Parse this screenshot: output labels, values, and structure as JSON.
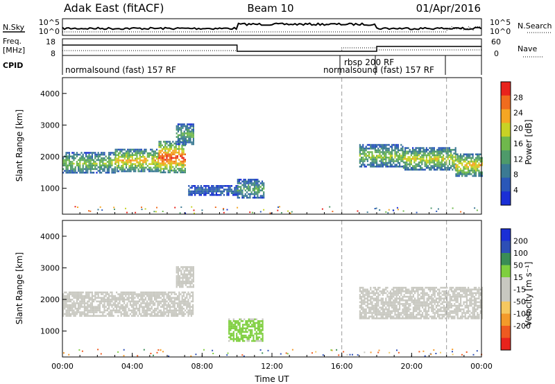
{
  "header": {
    "station": "Adak East (fitACF)",
    "beam": "Beam 10",
    "date": "01/Apr/2016"
  },
  "strip_labels": {
    "nsky": "N.Sky",
    "nsearch": "N.Search",
    "freq": "Freq.",
    "freq_unit": "[MHz]",
    "nave": "Nave",
    "cpid": "CPID"
  },
  "strip_axes": {
    "noise_ticks": [
      "10^5",
      "10^0"
    ],
    "freq_ticks": [
      "18",
      "8"
    ],
    "nave_ticks": [
      "60",
      "0"
    ]
  },
  "cpid_labels": [
    {
      "text": "normalsound (fast) 157 RF",
      "start_hour": 0
    },
    {
      "text": "rbsp 200 RF",
      "start_hour": 16
    },
    {
      "text": "normalsound (fast) 157 RF",
      "start_hour": 18
    }
  ],
  "colors": {
    "power_scale": [
      "#1a2fd6",
      "#2a57b8",
      "#3b7a93",
      "#4e9a6a",
      "#6fb84c",
      "#c8d225",
      "#f5a623",
      "#f06c1e",
      "#e8231c"
    ],
    "velocity_scale": [
      "#e8231c",
      "#ee5a20",
      "#f39a2a",
      "#f5c860",
      "#c8c8c0",
      "#c8c8c0",
      "#7fcf3f",
      "#3a8d55",
      "#2d4fb6",
      "#1a2fd6"
    ],
    "ground_scatter": "#c8c8c0"
  },
  "power_bar": {
    "label": "Power [dB]",
    "ticks": [
      "28",
      "24",
      "20",
      "16",
      "12",
      "8",
      "4"
    ]
  },
  "velocity_bar": {
    "label": "Velocity [m s⁻¹]",
    "ticks": [
      "200",
      "100",
      "50",
      "15",
      "-15",
      "-50",
      "-100",
      "-200"
    ]
  },
  "chart_data": [
    {
      "type": "heatmap",
      "name": "power",
      "ylabel": "Slant Range [km]",
      "ylim": [
        180,
        4500
      ],
      "yticks": [
        "1000",
        "2000",
        "3000",
        "4000"
      ],
      "zlim": [
        0,
        30
      ],
      "xlim": [
        0,
        24
      ],
      "markers_hour": [
        16,
        22
      ],
      "regions": [
        {
          "x0": 0.0,
          "x1": 3.0,
          "y0": 1500,
          "y1": 2150,
          "z": 12
        },
        {
          "x0": 3.0,
          "x1": 5.5,
          "y0": 1550,
          "y1": 2250,
          "z": 16
        },
        {
          "x0": 5.5,
          "x1": 7.0,
          "y0": 1500,
          "y1": 2500,
          "z": 20
        },
        {
          "x0": 6.5,
          "x1": 7.5,
          "y0": 2400,
          "y1": 3050,
          "z": 10
        },
        {
          "x0": 7.2,
          "x1": 10.0,
          "y0": 800,
          "y1": 1100,
          "z": 6
        },
        {
          "x0": 10.0,
          "x1": 11.5,
          "y0": 700,
          "y1": 1300,
          "z": 10
        },
        {
          "x0": 17.0,
          "x1": 19.5,
          "y0": 1700,
          "y1": 2400,
          "z": 12
        },
        {
          "x0": 19.5,
          "x1": 22.5,
          "y0": 1600,
          "y1": 2300,
          "z": 14
        },
        {
          "x0": 22.5,
          "x1": 24.0,
          "y0": 1400,
          "y1": 2100,
          "z": 16
        }
      ]
    },
    {
      "type": "heatmap",
      "name": "velocity",
      "ylabel": "Slant Range [km]",
      "ylim": [
        180,
        4500
      ],
      "yticks": [
        "1000",
        "2000",
        "3000",
        "4000"
      ],
      "zlim": [
        -250,
        250
      ],
      "xlim": [
        0,
        24
      ],
      "xticks": [
        "00:00",
        "04:00",
        "08:00",
        "12:00",
        "16:00",
        "20:00",
        "00:00"
      ],
      "xlabel": "Time UT",
      "markers_hour": [
        16,
        22
      ],
      "regions": [
        {
          "x0": 0.0,
          "x1": 7.5,
          "y0": 1500,
          "y1": 2250,
          "z": 0,
          "ground": true
        },
        {
          "x0": 6.5,
          "x1": 7.5,
          "y0": 2400,
          "y1": 3050,
          "z": 0,
          "ground": true
        },
        {
          "x0": 9.5,
          "x1": 11.5,
          "y0": 700,
          "y1": 1400,
          "z": 30
        },
        {
          "x0": 17.0,
          "x1": 24.0,
          "y0": 1400,
          "y1": 2400,
          "z": 0,
          "ground": true
        }
      ]
    }
  ]
}
